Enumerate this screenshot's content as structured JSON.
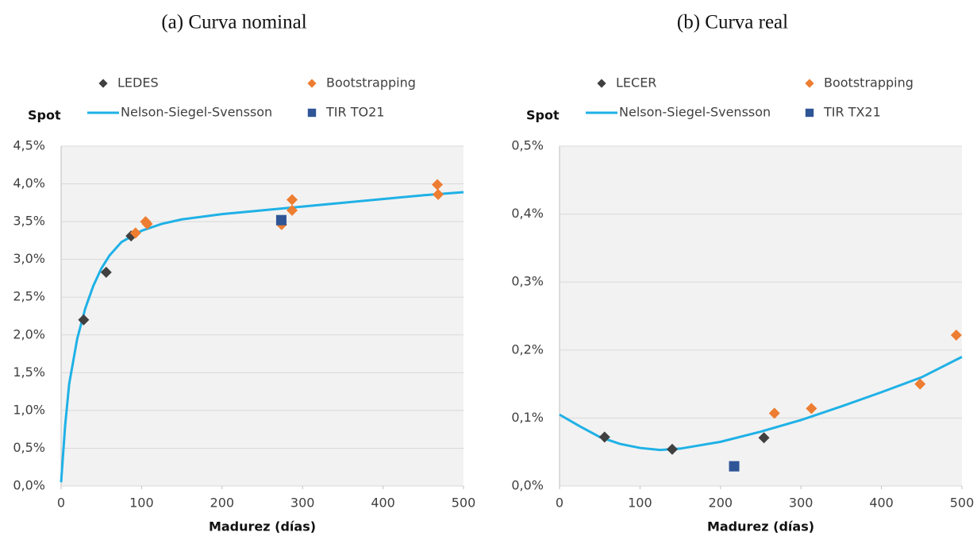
{
  "chart_data": [
    {
      "type": "scatter",
      "title": "(a) Curva nominal",
      "y_label": "Spot",
      "x_label": "Madurez (días)",
      "xlim": [
        0,
        500
      ],
      "xticks": [
        0,
        100,
        200,
        300,
        400,
        500
      ],
      "ylim": [
        0,
        4.5
      ],
      "yticks": [
        {
          "value": 0,
          "label": "0,0%"
        },
        {
          "value": 0.5,
          "label": "0,5%"
        },
        {
          "value": 1,
          "label": "1,0%"
        },
        {
          "value": 1.5,
          "label": "1,5%"
        },
        {
          "value": 2,
          "label": "2,0%"
        },
        {
          "value": 2.5,
          "label": "2,5%"
        },
        {
          "value": 3,
          "label": "3,0%"
        },
        {
          "value": 3.5,
          "label": "3,5%"
        },
        {
          "value": 4,
          "label": "4,0%"
        },
        {
          "value": 4.5,
          "label": "4,5%"
        }
      ],
      "grid": true,
      "series": [
        {
          "name": "LEDES",
          "color": "#404040",
          "marker": "diamond",
          "x": [
            28,
            56,
            87
          ],
          "values": [
            2.2,
            2.83,
            3.31
          ]
        },
        {
          "name": "Bootstrapping",
          "color": "#ed7d31",
          "marker": "diamond",
          "x": [
            92.5,
            105,
            107,
            274,
            287,
            287,
            467.5,
            468.5
          ],
          "values": [
            3.35,
            3.5,
            3.47,
            3.46,
            3.79,
            3.65,
            3.99,
            3.86
          ]
        },
        {
          "name": "Nelson-Siegel-Svensson",
          "color": "#1fb1e6",
          "marker": "none",
          "x": [
            0,
            5,
            10,
            20,
            30,
            40,
            50,
            60,
            75,
            100,
            125,
            150,
            200,
            250,
            300,
            350,
            400,
            450,
            500
          ],
          "values": [
            0.05,
            0.8,
            1.35,
            1.95,
            2.35,
            2.65,
            2.88,
            3.05,
            3.23,
            3.38,
            3.47,
            3.53,
            3.6,
            3.65,
            3.7,
            3.75,
            3.8,
            3.85,
            3.89
          ]
        },
        {
          "name": "TIR TO21",
          "color": "#2f5597",
          "marker": "square",
          "x": [
            273.6
          ],
          "values": [
            3.52
          ]
        }
      ]
    },
    {
      "type": "scatter",
      "title": "(b) Curva real",
      "y_label": "Spot",
      "x_label": "Madurez (días)",
      "xlim": [
        0,
        500
      ],
      "xticks": [
        0,
        100,
        200,
        300,
        400,
        500
      ],
      "ylim": [
        0,
        0.5
      ],
      "yticks": [
        {
          "value": 0,
          "label": "0,0%"
        },
        {
          "value": 0.1,
          "label": "0,1%"
        },
        {
          "value": 0.2,
          "label": "0,2%"
        },
        {
          "value": 0.3,
          "label": "0,3%"
        },
        {
          "value": 0.4,
          "label": "0,4%"
        },
        {
          "value": 0.5,
          "label": "0,5%"
        }
      ],
      "grid": true,
      "series": [
        {
          "name": "LECER",
          "color": "#404040",
          "marker": "diamond",
          "x": [
            56,
            140,
            254
          ],
          "values": [
            0.072,
            0.054,
            0.071
          ]
        },
        {
          "name": "Bootstrapping",
          "color": "#ed7d31",
          "marker": "diamond",
          "x": [
            267,
            313,
            448,
            493
          ],
          "values": [
            0.107,
            0.114,
            0.15,
            0.222
          ]
        },
        {
          "name": "Nelson-Siegel-Svensson",
          "color": "#1fb1e6",
          "marker": "none",
          "x": [
            0,
            25,
            50,
            75,
            100,
            125,
            150,
            200,
            250,
            300,
            350,
            400,
            450,
            500
          ],
          "values": [
            0.105,
            0.088,
            0.072,
            0.062,
            0.056,
            0.053,
            0.055,
            0.065,
            0.08,
            0.097,
            0.117,
            0.138,
            0.16,
            0.19
          ]
        },
        {
          "name": "TIR TX21",
          "color": "#2f5597",
          "marker": "square",
          "x": [
            217
          ],
          "values": [
            0.029
          ]
        }
      ]
    }
  ]
}
